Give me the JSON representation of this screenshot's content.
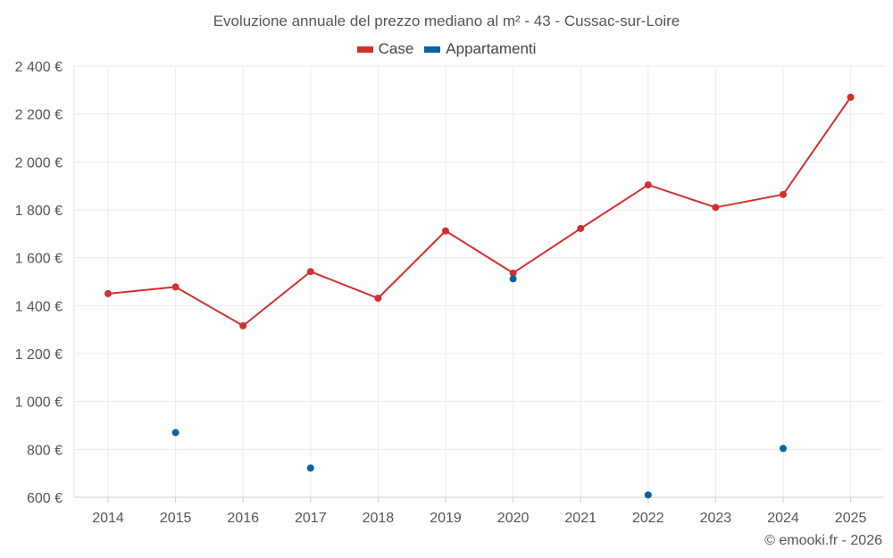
{
  "chart_data": {
    "type": "line",
    "title": "Evoluzione annuale del prezzo mediano al m² - 43 - Cussac-sur-Loire",
    "categories": [
      "2014",
      "2015",
      "2016",
      "2017",
      "2018",
      "2019",
      "2020",
      "2021",
      "2022",
      "2023",
      "2024",
      "2025"
    ],
    "series": [
      {
        "name": "Case",
        "color": "#d32f2f",
        "style": "line",
        "values": [
          1450,
          1478,
          1316,
          1542,
          1431,
          1712,
          1536,
          1722,
          1904,
          1810,
          1864,
          2270
        ]
      },
      {
        "name": "Appartamenti",
        "color": "#0d62a3",
        "style": "points",
        "values": [
          null,
          870,
          null,
          722,
          null,
          null,
          1512,
          null,
          610,
          null,
          804,
          null
        ]
      }
    ],
    "ylim": [
      600,
      2400
    ],
    "yticks": [
      600,
      800,
      1000,
      1200,
      1400,
      1600,
      1800,
      2000,
      2200,
      2400
    ],
    "ytick_labels": [
      "600 €",
      "800 €",
      "1 000 €",
      "1 200 €",
      "1 400 €",
      "1 600 €",
      "1 800 €",
      "2 000 €",
      "2 200 €",
      "2 400 €"
    ],
    "xlabel": "",
    "ylabel": "",
    "grid": true,
    "legend_position": "top-center"
  },
  "credit": "© emooki.fr - 2026"
}
